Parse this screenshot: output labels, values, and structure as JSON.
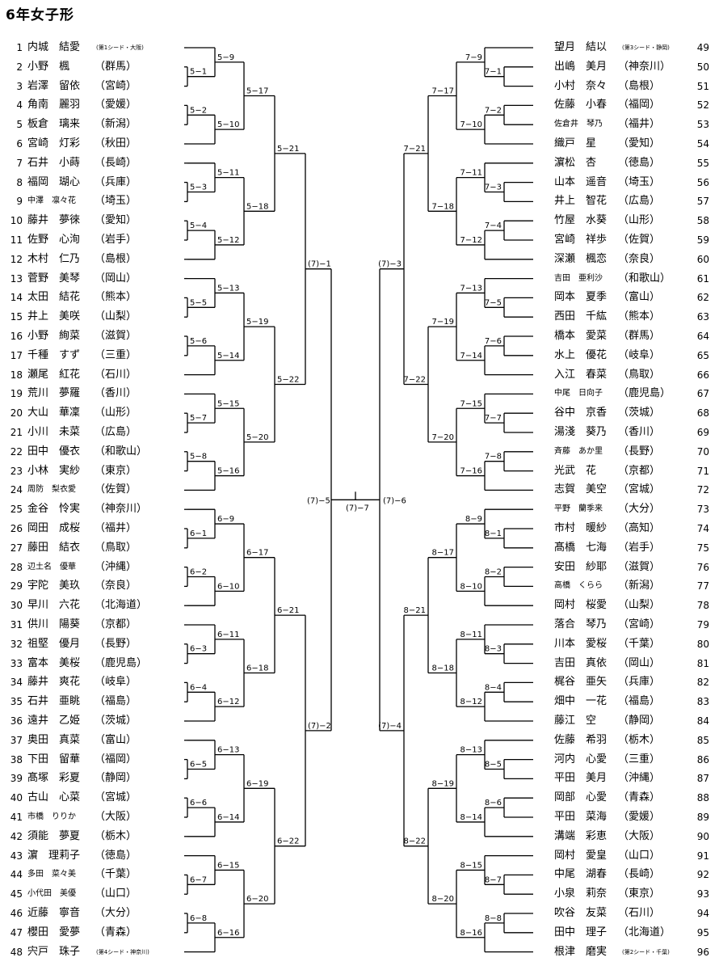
{
  "title": "6年女子形",
  "left_players": [
    {
      "num": "1",
      "name": "内城　結愛",
      "pref": "(第1シード・大阪)"
    },
    {
      "num": "2",
      "name": "小野　楓",
      "pref": "（群馬）"
    },
    {
      "num": "3",
      "name": "岩澤　留依",
      "pref": "（宮崎）"
    },
    {
      "num": "4",
      "name": "角南　麗羽",
      "pref": "（愛媛）"
    },
    {
      "num": "5",
      "name": "板倉　璃来",
      "pref": "（新潟）"
    },
    {
      "num": "6",
      "name": "宮崎　灯彩",
      "pref": "（秋田）"
    },
    {
      "num": "7",
      "name": "石井　小蒔",
      "pref": "（長崎）"
    },
    {
      "num": "8",
      "name": "福岡　瑚心",
      "pref": "（兵庫）"
    },
    {
      "num": "9",
      "name": "中澤　凛々花",
      "pref": "（埼玉）"
    },
    {
      "num": "10",
      "name": "藤井　夢徠",
      "pref": "（愛知）"
    },
    {
      "num": "11",
      "name": "佐野　心洵",
      "pref": "（岩手）"
    },
    {
      "num": "12",
      "name": "木村　仁乃",
      "pref": "（島根）"
    },
    {
      "num": "13",
      "name": "菅野　美琴",
      "pref": "（岡山）"
    },
    {
      "num": "14",
      "name": "太田　結花",
      "pref": "（熊本）"
    },
    {
      "num": "15",
      "name": "井上　美咲",
      "pref": "（山梨）"
    },
    {
      "num": "16",
      "name": "小野　絢菜",
      "pref": "（滋賀）"
    },
    {
      "num": "17",
      "name": "千種　すず",
      "pref": "（三重）"
    },
    {
      "num": "18",
      "name": "瀬尾　紅花",
      "pref": "（石川）"
    },
    {
      "num": "19",
      "name": "荒川　夢羅",
      "pref": "（香川）"
    },
    {
      "num": "20",
      "name": "大山　華凜",
      "pref": "（山形）"
    },
    {
      "num": "21",
      "name": "小川　未菜",
      "pref": "（広島）"
    },
    {
      "num": "22",
      "name": "田中　優衣",
      "pref": "（和歌山）"
    },
    {
      "num": "23",
      "name": "小林　実紗",
      "pref": "（東京）"
    },
    {
      "num": "24",
      "name": "周防　梨衣愛",
      "pref": "（佐賀）"
    },
    {
      "num": "25",
      "name": "金谷　怜実",
      "pref": "（神奈川）"
    },
    {
      "num": "26",
      "name": "岡田　成桜",
      "pref": "（福井）"
    },
    {
      "num": "27",
      "name": "藤田　結衣",
      "pref": "（鳥取）"
    },
    {
      "num": "28",
      "name": "辺土名　優華",
      "pref": "（沖縄）"
    },
    {
      "num": "29",
      "name": "宇陀　美玖",
      "pref": "（奈良）"
    },
    {
      "num": "30",
      "name": "早川　六花",
      "pref": "（北海道）"
    },
    {
      "num": "31",
      "name": "供川　陽葵",
      "pref": "（京都）"
    },
    {
      "num": "32",
      "name": "祖堅　優月",
      "pref": "（長野）"
    },
    {
      "num": "33",
      "name": "富本　美桜",
      "pref": "（鹿児島）"
    },
    {
      "num": "34",
      "name": "藤井　爽花",
      "pref": "（岐阜）"
    },
    {
      "num": "35",
      "name": "石井　亜眺",
      "pref": "（福島）"
    },
    {
      "num": "36",
      "name": "遠井　乙姫",
      "pref": "（茨城）"
    },
    {
      "num": "37",
      "name": "奥田　真菜",
      "pref": "（富山）"
    },
    {
      "num": "38",
      "name": "下田　留華",
      "pref": "（福岡）"
    },
    {
      "num": "39",
      "name": "髙塚　彩夏",
      "pref": "（静岡）"
    },
    {
      "num": "40",
      "name": "古山　心菜",
      "pref": "（宮城）"
    },
    {
      "num": "41",
      "name": "市橋　りりか",
      "pref": "（大阪）"
    },
    {
      "num": "42",
      "name": "須能　夢夏",
      "pref": "（栃木）"
    },
    {
      "num": "43",
      "name": "濵　理莉子",
      "pref": "（徳島）"
    },
    {
      "num": "44",
      "name": "多田　菜々美",
      "pref": "（千葉）"
    },
    {
      "num": "45",
      "name": "小代田　美優",
      "pref": "（山口）"
    },
    {
      "num": "46",
      "name": "近藤　寧音",
      "pref": "（大分）"
    },
    {
      "num": "47",
      "name": "櫻田　愛夢",
      "pref": "（青森）"
    },
    {
      "num": "48",
      "name": "宍戸　珠子",
      "pref": "(第4シード・神奈川)"
    }
  ],
  "right_players": [
    {
      "num": "49",
      "name": "望月　結以",
      "pref": "(第3シード・静岡)"
    },
    {
      "num": "50",
      "name": "出嶋　美月",
      "pref": "（神奈川）"
    },
    {
      "num": "51",
      "name": "小村　奈々",
      "pref": "（島根）"
    },
    {
      "num": "52",
      "name": "佐藤　小春",
      "pref": "（福岡）"
    },
    {
      "num": "53",
      "name": "佐倉井　琴乃",
      "pref": "（福井）"
    },
    {
      "num": "54",
      "name": "織戸　星",
      "pref": "（愛知）"
    },
    {
      "num": "55",
      "name": "濵松　杏",
      "pref": "（徳島）"
    },
    {
      "num": "56",
      "name": "山本　遥音",
      "pref": "（埼玉）"
    },
    {
      "num": "57",
      "name": "井上　智花",
      "pref": "（広島）"
    },
    {
      "num": "58",
      "name": "竹屋　水葵",
      "pref": "（山形）"
    },
    {
      "num": "59",
      "name": "宮崎　祥歩",
      "pref": "（佐賀）"
    },
    {
      "num": "60",
      "name": "深瀬　楓恋",
      "pref": "（奈良）"
    },
    {
      "num": "61",
      "name": "吉田　亜利沙",
      "pref": "（和歌山）"
    },
    {
      "num": "62",
      "name": "岡本　夏季",
      "pref": "（富山）"
    },
    {
      "num": "63",
      "name": "西田　千紘",
      "pref": "（熊本）"
    },
    {
      "num": "64",
      "name": "橋本　愛菜",
      "pref": "（群馬）"
    },
    {
      "num": "65",
      "name": "水上　優花",
      "pref": "（岐阜）"
    },
    {
      "num": "66",
      "name": "入江　春菜",
      "pref": "（鳥取）"
    },
    {
      "num": "67",
      "name": "中尾　日向子",
      "pref": "（鹿児島）"
    },
    {
      "num": "68",
      "name": "谷中　京香",
      "pref": "（茨城）"
    },
    {
      "num": "69",
      "name": "湯淺　葵乃",
      "pref": "（香川）"
    },
    {
      "num": "70",
      "name": "斉藤　あか里",
      "pref": "（長野）"
    },
    {
      "num": "71",
      "name": "光武　花",
      "pref": "（京都）"
    },
    {
      "num": "72",
      "name": "志賀　美空",
      "pref": "（宮城）"
    },
    {
      "num": "73",
      "name": "平野　蘭季来",
      "pref": "（大分）"
    },
    {
      "num": "74",
      "name": "市村　暖紗",
      "pref": "（高知）"
    },
    {
      "num": "75",
      "name": "髙橋　七海",
      "pref": "（岩手）"
    },
    {
      "num": "76",
      "name": "安田　紗耶",
      "pref": "（滋賀）"
    },
    {
      "num": "77",
      "name": "高橋　くらら",
      "pref": "（新潟）"
    },
    {
      "num": "78",
      "name": "岡村　桜愛",
      "pref": "（山梨）"
    },
    {
      "num": "79",
      "name": "落合　琴乃",
      "pref": "（宮崎）"
    },
    {
      "num": "80",
      "name": "川本　愛桜",
      "pref": "（千葉）"
    },
    {
      "num": "81",
      "name": "吉田　真依",
      "pref": "（岡山）"
    },
    {
      "num": "82",
      "name": "梶谷　亜矢",
      "pref": "（兵庫）"
    },
    {
      "num": "83",
      "name": "畑中　一花",
      "pref": "（福島）"
    },
    {
      "num": "84",
      "name": "藤江　空",
      "pref": "（静岡）"
    },
    {
      "num": "85",
      "name": "佐藤　希羽",
      "pref": "（栃木）"
    },
    {
      "num": "86",
      "name": "河内　心愛",
      "pref": "（三重）"
    },
    {
      "num": "87",
      "name": "平田　美月",
      "pref": "（沖縄）"
    },
    {
      "num": "88",
      "name": "岡部　心愛",
      "pref": "（青森）"
    },
    {
      "num": "89",
      "name": "平田　菜海",
      "pref": "（愛媛）"
    },
    {
      "num": "90",
      "name": "溝端　彩恵",
      "pref": "（大阪）"
    },
    {
      "num": "91",
      "name": "岡村　愛皇",
      "pref": "（山口）"
    },
    {
      "num": "92",
      "name": "中尾　湖春",
      "pref": "（長崎）"
    },
    {
      "num": "93",
      "name": "小泉　莉奈",
      "pref": "（東京）"
    },
    {
      "num": "94",
      "name": "吹谷　友菜",
      "pref": "（石川）"
    },
    {
      "num": "95",
      "name": "田中　理子",
      "pref": "（北海道）"
    },
    {
      "num": "96",
      "name": "根津　磨実",
      "pref": "(第2シード・千葉)"
    }
  ],
  "small_name_rows": {
    "left": [
      9,
      24,
      28,
      41,
      44,
      45
    ],
    "right": [
      53,
      61,
      67,
      70,
      73,
      77
    ]
  },
  "bracket": {
    "left_block_labels": [
      "5",
      "6"
    ],
    "right_block_labels": [
      "7",
      "8"
    ],
    "r2_order": [
      9,
      1,
      2,
      10,
      11,
      3,
      4,
      12,
      13,
      5,
      6,
      14,
      15,
      7,
      8,
      16
    ],
    "r3_order": [
      17,
      18,
      19,
      20
    ],
    "r4_order": [
      21,
      22
    ],
    "q_left": [
      "(7)−1",
      "(7)−2"
    ],
    "q_right": [
      "(7)−3",
      "(7)−4"
    ],
    "semi_left": "(7)−5",
    "semi_right": "(7)−6",
    "final": "(7)−7"
  }
}
